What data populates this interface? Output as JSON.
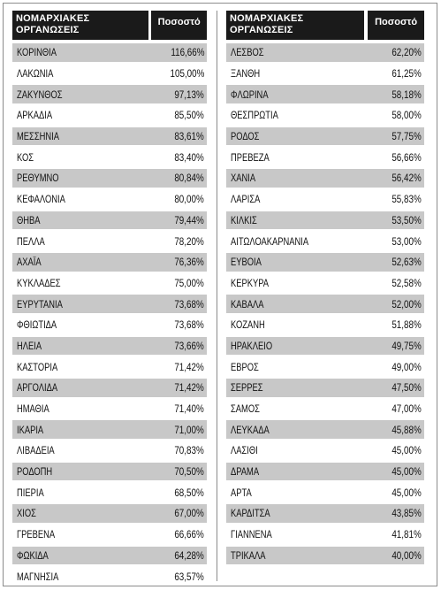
{
  "header": {
    "left_title": "ΝΟΜΑΡΧΙΑΚΕΣ ΟΡΓΑΝΩΣΕΙΣ",
    "left_pct": "Ποσοστό",
    "right_title": "ΝΟΜΑΡΧΙΑΚΕΣ ΟΡΓΑΝΩΣΕΙΣ",
    "right_pct": "Ποσοστό"
  },
  "colors": {
    "header_bg": "#1a1a1a",
    "row_shade": "#c8c8c8"
  },
  "left_rows": [
    {
      "name": "ΚΟΡΙΝΘΙΑ",
      "value": "116,66%"
    },
    {
      "name": "ΛΑΚΩΝΙΑ",
      "value": "105,00%"
    },
    {
      "name": "ΖΑΚΥΝΘΟΣ",
      "value": "97,13%"
    },
    {
      "name": "ΑΡΚΑΔΙΑ",
      "value": "85,50%"
    },
    {
      "name": "ΜΕΣΣΗΝΙΑ",
      "value": "83,61%"
    },
    {
      "name": "ΚΟΣ",
      "value": "83,40%"
    },
    {
      "name": "ΡΕΘΥΜΝΟ",
      "value": "80,84%"
    },
    {
      "name": "ΚΕΦΑΛΟΝΙΑ",
      "value": "80,00%"
    },
    {
      "name": "ΘΗΒΑ",
      "value": "79,44%"
    },
    {
      "name": "ΠΕΛΛΑ",
      "value": "78,20%"
    },
    {
      "name": "ΑΧΑΪΑ",
      "value": "76,36%"
    },
    {
      "name": "ΚΥΚΛΑΔΕΣ",
      "value": "75,00%"
    },
    {
      "name": "ΕΥΡΥΤΑΝΙΑ",
      "value": "73,68%"
    },
    {
      "name": "ΦΘΙΩΤΙΔΑ",
      "value": "73,68%"
    },
    {
      "name": "ΗΛΕΙΑ",
      "value": "73,66%"
    },
    {
      "name": "ΚΑΣΤΟΡΙΑ",
      "value": "71,42%"
    },
    {
      "name": "ΑΡΓΟΛΙΔΑ",
      "value": "71,42%"
    },
    {
      "name": "ΗΜΑΘΙΑ",
      "value": "71,40%"
    },
    {
      "name": "ΙΚΑΡΙΑ",
      "value": "71,00%"
    },
    {
      "name": "ΛΙΒΑΔΕΙΑ",
      "value": "70,83%"
    },
    {
      "name": "ΡΟΔΟΠΗ",
      "value": "70,50%"
    },
    {
      "name": "ΠΙΕΡΙΑ",
      "value": "68,50%"
    },
    {
      "name": "ΧΙΟΣ",
      "value": "67,00%"
    },
    {
      "name": "ΓΡΕΒΕΝΑ",
      "value": "66,66%"
    },
    {
      "name": "ΦΩΚΙΔΑ",
      "value": "64,28%"
    },
    {
      "name": "ΜΑΓΝΗΣΙΑ",
      "value": "63,57%"
    }
  ],
  "right_rows": [
    {
      "name": "ΛΕΣΒΟΣ",
      "value": "62,20%"
    },
    {
      "name": "ΞΑΝΘΗ",
      "value": "61,25%"
    },
    {
      "name": "ΦΛΩΡΙΝΑ",
      "value": "58,18%"
    },
    {
      "name": "ΘΕΣΠΡΩΤΙΑ",
      "value": "58,00%"
    },
    {
      "name": "ΡΟΔΟΣ",
      "value": "57,75%"
    },
    {
      "name": "ΠΡΕΒΕΖΑ",
      "value": "56,66%"
    },
    {
      "name": "ΧΑΝΙΑ",
      "value": "56,42%"
    },
    {
      "name": "ΛΑΡΙΣΑ",
      "value": "55,83%"
    },
    {
      "name": "ΚΙΛΚΙΣ",
      "value": "53,50%"
    },
    {
      "name": "ΑΙΤΩΛΟΑΚΑΡΝΑΝΙΑ",
      "value": "53,00%"
    },
    {
      "name": "ΕΥΒΟΙΑ",
      "value": "52,63%"
    },
    {
      "name": "ΚΕΡΚΥΡΑ",
      "value": "52,58%"
    },
    {
      "name": "ΚΑΒΑΛΑ",
      "value": "52,00%"
    },
    {
      "name": "ΚΟΖΑΝΗ",
      "value": "51,88%"
    },
    {
      "name": "ΗΡΑΚΛΕΙΟ",
      "value": "49,75%"
    },
    {
      "name": "ΕΒΡΟΣ",
      "value": "49,00%"
    },
    {
      "name": "ΣΕΡΡΕΣ",
      "value": "47,50%"
    },
    {
      "name": "ΣΑΜΟΣ",
      "value": "47,00%"
    },
    {
      "name": "ΛΕΥΚΑΔΑ",
      "value": "45,88%"
    },
    {
      "name": "ΛΑΣΙΘΙ",
      "value": "45,00%"
    },
    {
      "name": "ΔΡΑΜΑ",
      "value": "45,00%"
    },
    {
      "name": "ΑΡΤΑ",
      "value": "45,00%"
    },
    {
      "name": "ΚΑΡΔΙΤΣΑ",
      "value": "43,85%"
    },
    {
      "name": "ΓΙΑΝΝΕΝΑ",
      "value": "41,81%"
    },
    {
      "name": "ΤΡΙΚΑΛΑ",
      "value": "40,00%"
    }
  ]
}
